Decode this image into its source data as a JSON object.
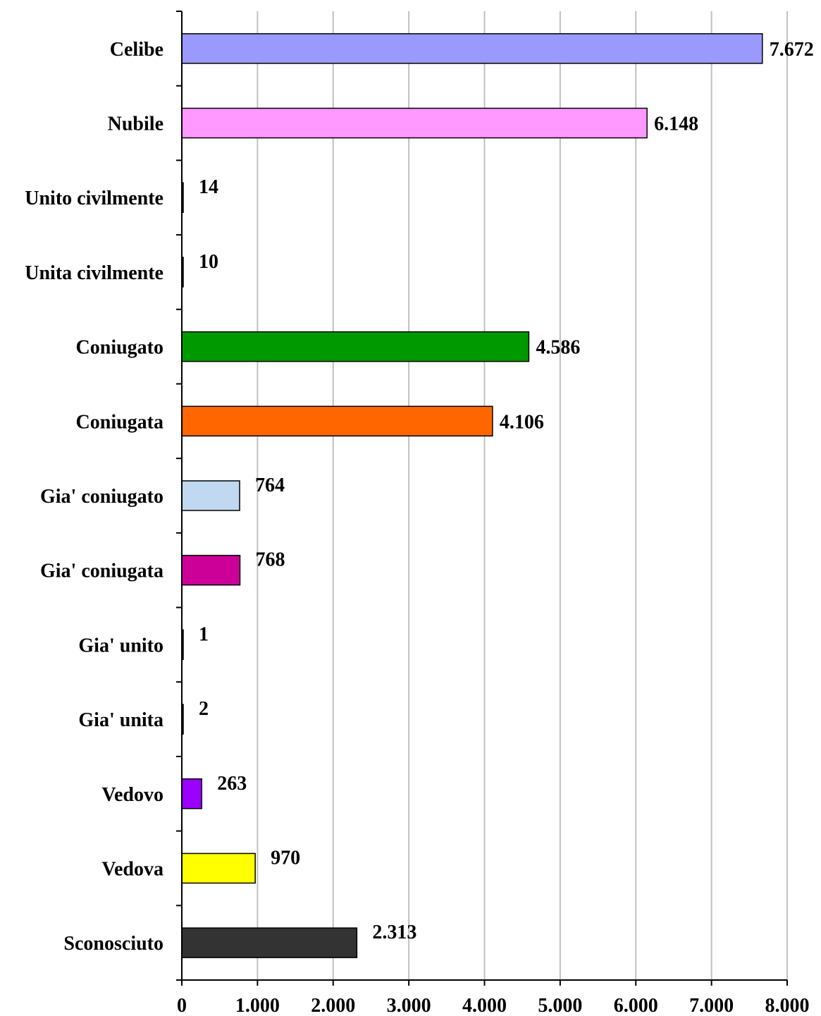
{
  "chart_data": {
    "type": "bar",
    "orientation": "horizontal",
    "title": "",
    "xlabel": "",
    "ylabel": "",
    "xlim": [
      0,
      8000
    ],
    "x_ticks": [
      0,
      1000,
      2000,
      3000,
      4000,
      5000,
      6000,
      7000,
      8000
    ],
    "x_tick_labels": [
      "0",
      "1.000",
      "2.000",
      "3.000",
      "4.000",
      "5.000",
      "6.000",
      "7.000",
      "8.000"
    ],
    "grid": "vertical",
    "categories": [
      "Celibe",
      "Nubile",
      "Unito civilmente",
      "Unita civilmente",
      "Coniugato",
      "Coniugata",
      "Gia' coniugato",
      "Gia' coniugata",
      "Gia' unito",
      "Gia' unita",
      "Vedovo",
      "Vedova",
      "Sconosciuto"
    ],
    "values": [
      7672,
      6148,
      14,
      10,
      4586,
      4106,
      764,
      768,
      1,
      2,
      263,
      970,
      2313
    ],
    "value_labels": [
      "7.672",
      "6.148",
      "14",
      "10",
      "4.586",
      "4.106",
      "764",
      "768",
      "1",
      "2",
      "263",
      "970",
      "2.313"
    ],
    "colors": [
      "#9999ff",
      "#ff99ff",
      "#000000",
      "#000000",
      "#009900",
      "#ff6600",
      "#c0d8f0",
      "#cc0099",
      "#000000",
      "#000000",
      "#9900ff",
      "#ffff00",
      "#333333"
    ]
  }
}
